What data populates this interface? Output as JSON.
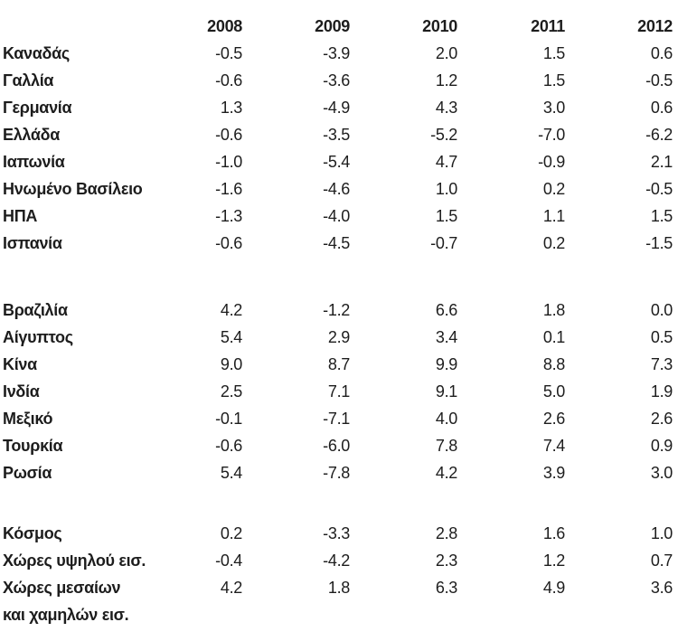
{
  "chart_data": {
    "type": "table",
    "columns": [
      "2008",
      "2009",
      "2010",
      "2011",
      "2012"
    ],
    "groups": [
      {
        "rows": [
          {
            "label": "Καναδάς",
            "values": [
              "-0.5",
              "-3.9",
              "2.0",
              "1.5",
              "0.6"
            ]
          },
          {
            "label": "Γαλλία",
            "values": [
              "-0.6",
              "-3.6",
              "1.2",
              "1.5",
              "-0.5"
            ]
          },
          {
            "label": "Γερμανία",
            "values": [
              "1.3",
              "-4.9",
              "4.3",
              "3.0",
              "0.6"
            ]
          },
          {
            "label": "Ελλάδα",
            "values": [
              "-0.6",
              "-3.5",
              "-5.2",
              "-7.0",
              "-6.2"
            ]
          },
          {
            "label": "Ιαπωνία",
            "values": [
              "-1.0",
              "-5.4",
              "4.7",
              "-0.9",
              "2.1"
            ]
          },
          {
            "label": "Ηνωμένο Βασίλειο",
            "values": [
              "-1.6",
              "-4.6",
              "1.0",
              "0.2",
              "-0.5"
            ]
          },
          {
            "label": "ΗΠΑ",
            "values": [
              "-1.3",
              "-4.0",
              "1.5",
              "1.1",
              "1.5"
            ]
          },
          {
            "label": "Ισπανία",
            "values": [
              "-0.6",
              "-4.5",
              "-0.7",
              "0.2",
              "-1.5"
            ]
          }
        ]
      },
      {
        "rows": [
          {
            "label": "Βραζιλία",
            "values": [
              "4.2",
              "-1.2",
              "6.6",
              "1.8",
              "0.0"
            ]
          },
          {
            "label": "Αίγυπτος",
            "values": [
              "5.4",
              "2.9",
              "3.4",
              "0.1",
              "0.5"
            ]
          },
          {
            "label": "Κίνα",
            "values": [
              "9.0",
              "8.7",
              "9.9",
              "8.8",
              "7.3"
            ]
          },
          {
            "label": "Ινδία",
            "values": [
              "2.5",
              "7.1",
              "9.1",
              "5.0",
              "1.9"
            ]
          },
          {
            "label": "Μεξικό",
            "values": [
              "-0.1",
              "-7.1",
              "4.0",
              "2.6",
              "2.6"
            ]
          },
          {
            "label": "Τουρκία",
            "values": [
              "-0.6",
              "-6.0",
              "7.8",
              "7.4",
              "0.9"
            ]
          },
          {
            "label": "Ρωσία",
            "values": [
              "5.4",
              "-7.8",
              "4.2",
              "3.9",
              "3.0"
            ]
          }
        ]
      },
      {
        "rows": [
          {
            "label": "Κόσμος",
            "values": [
              "0.2",
              "-3.3",
              "2.8",
              "1.6",
              "1.0"
            ]
          },
          {
            "label": "Χώρες υψηλού εισ.",
            "values": [
              "-0.4",
              "-4.2",
              "2.3",
              "1.2",
              "0.7"
            ]
          },
          {
            "label": "Χώρες μεσαίων",
            "values": [
              "4.2",
              "1.8",
              "6.3",
              "4.9",
              "3.6"
            ]
          },
          {
            "label": "και χαμηλών εισ.",
            "values": []
          }
        ]
      }
    ]
  },
  "colors": {
    "text": "#1d1d1d",
    "background": "#ffffff"
  }
}
